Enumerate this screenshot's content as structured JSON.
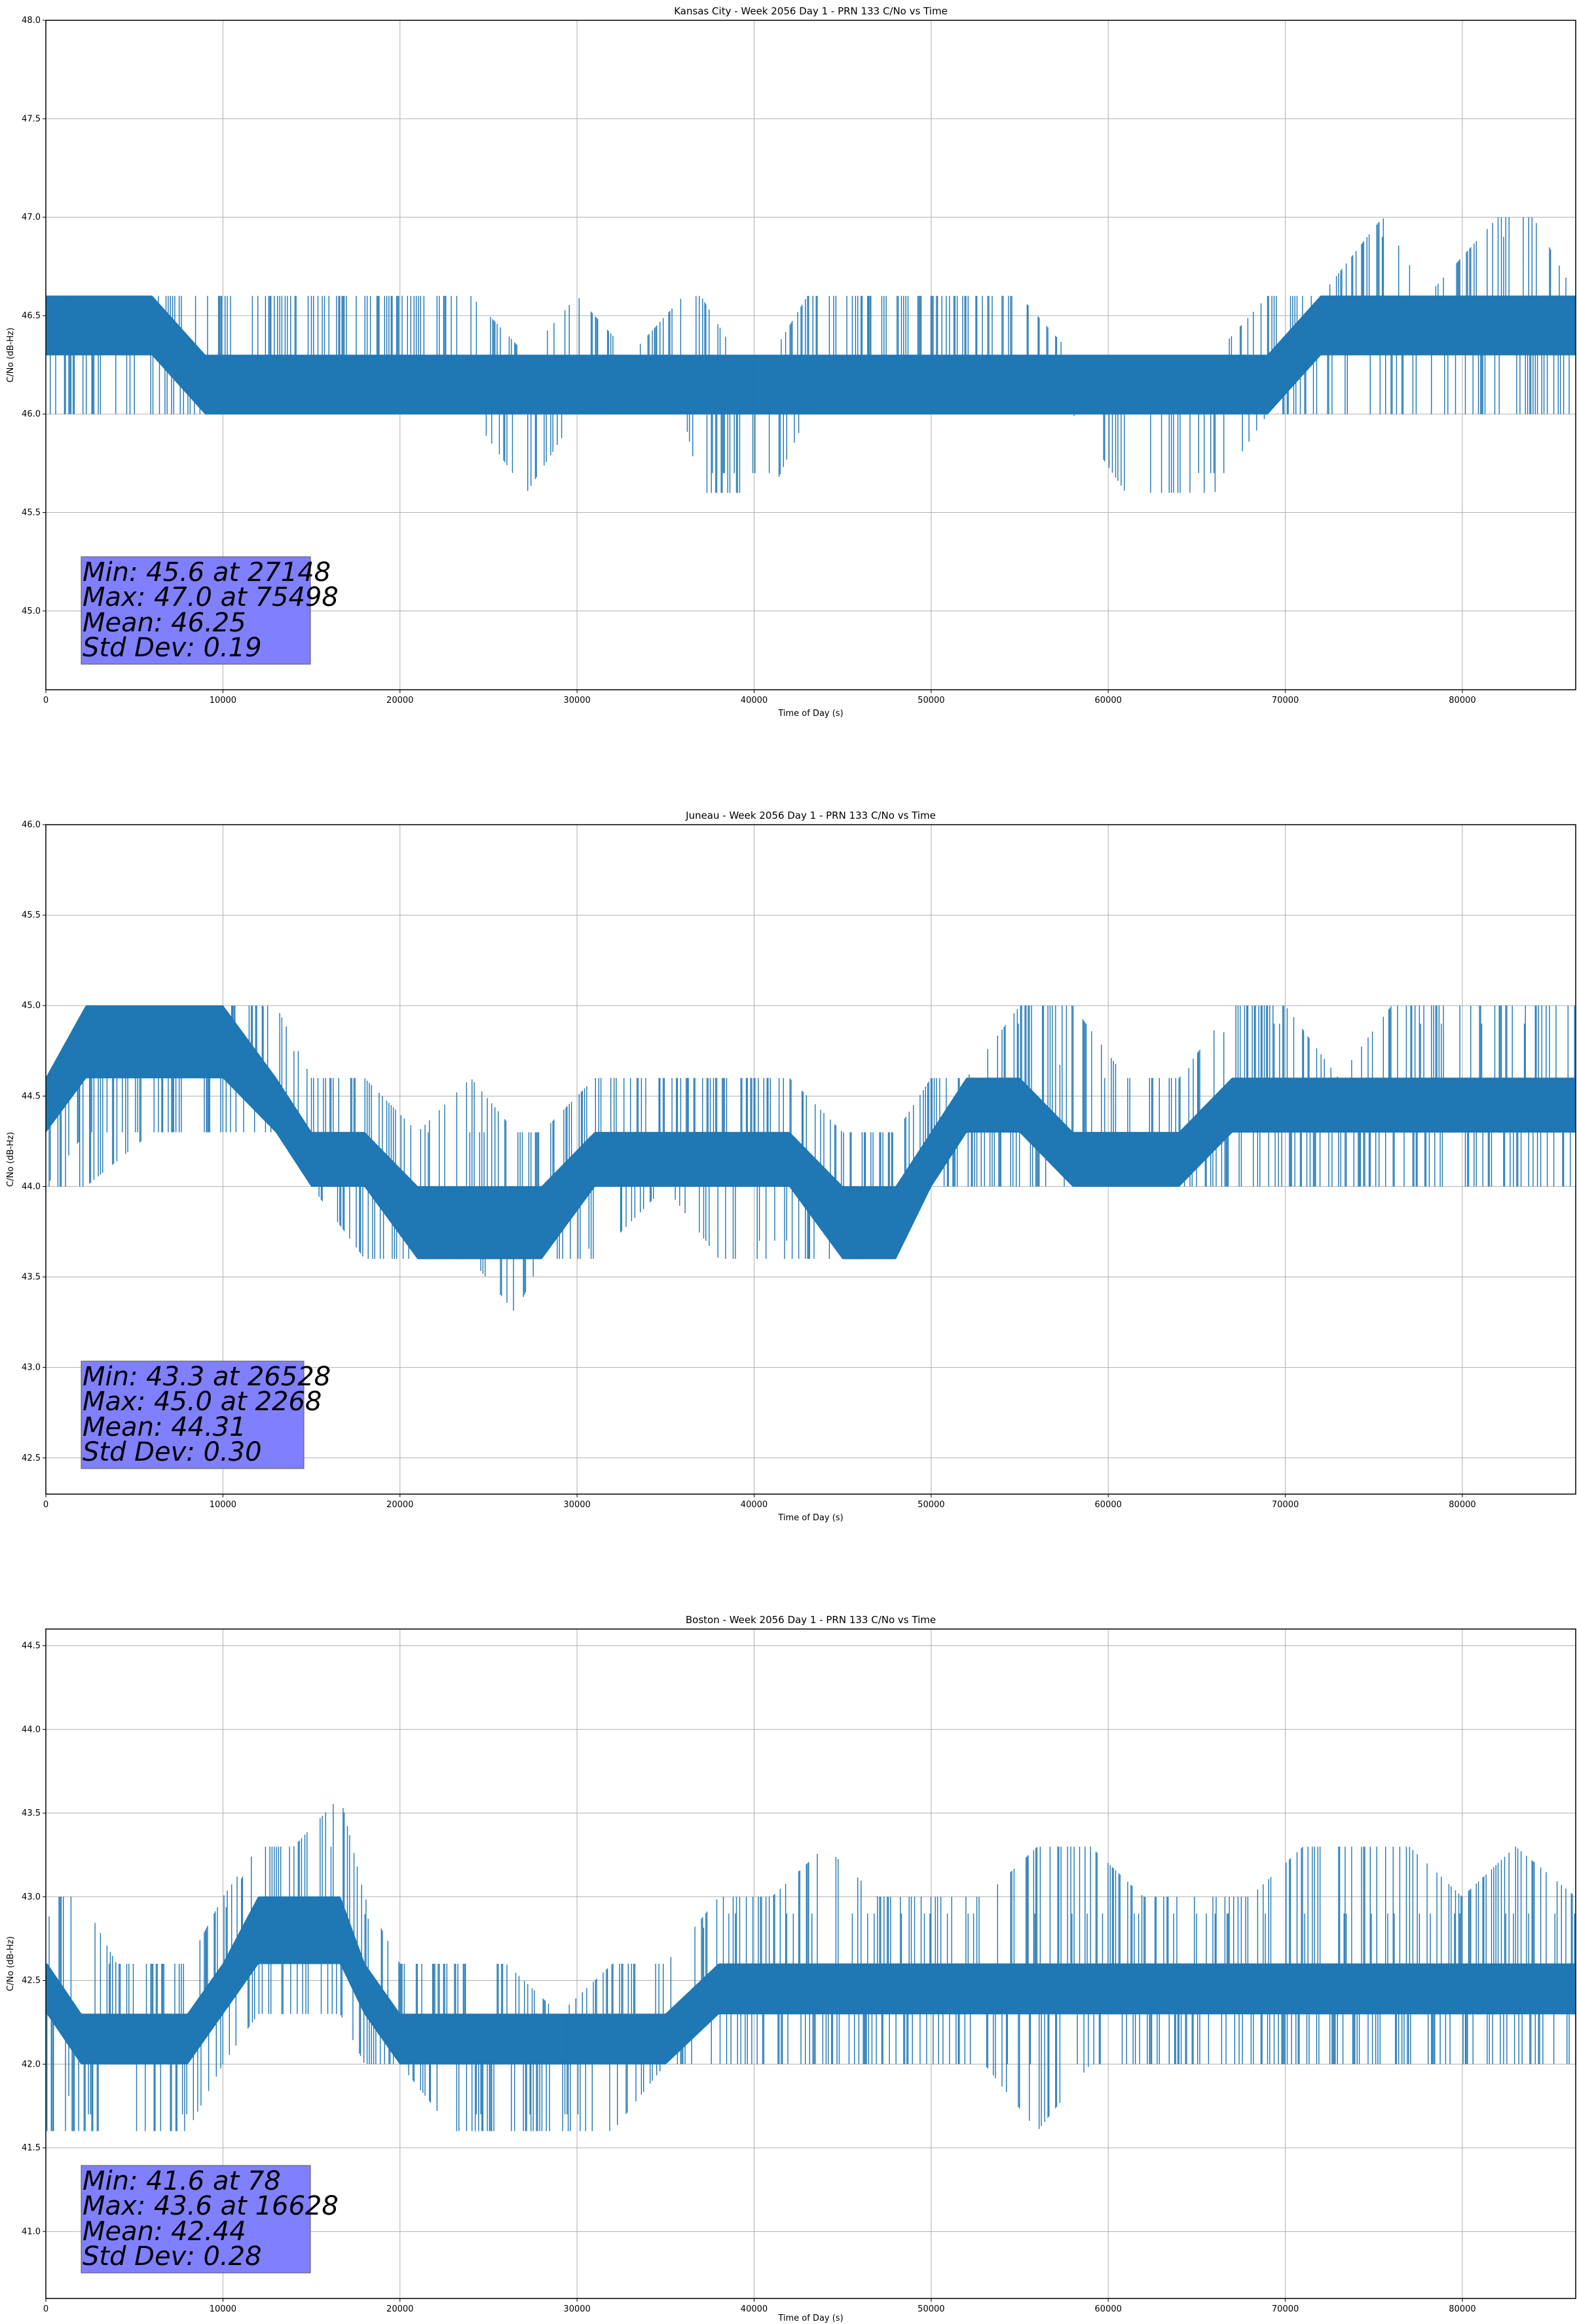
{
  "chart_data": [
    {
      "type": "line",
      "title": "Kansas City - Week 2056 Day 1 - PRN 133 C/No vs Time",
      "xlabel": "Time of Day (s)",
      "ylabel": "C/No (dB-Hz)",
      "xlim": [
        0,
        86400
      ],
      "ylim": [
        44.6,
        48.0
      ],
      "xticks": [
        0,
        10000,
        20000,
        30000,
        40000,
        50000,
        60000,
        70000,
        80000
      ],
      "yticks": [
        45.0,
        45.5,
        46.0,
        46.5,
        47.0,
        47.5,
        48.0
      ],
      "grid": true,
      "series": [
        {
          "color": "#1f77b4",
          "x": [
            0,
            2000,
            6000,
            9000,
            10000,
            13000,
            16000,
            20000,
            24000,
            27148,
            30000,
            33000,
            36000,
            37000,
            39000,
            41000,
            43000,
            46000,
            49000,
            52000,
            55000,
            58000,
            61000,
            63000,
            66000,
            69000,
            72000,
            75498,
            78000,
            82000,
            84000,
            86400
          ],
          "low": [
            46.0,
            46.0,
            46.0,
            46.0,
            46.0,
            46.0,
            46.0,
            46.0,
            46.0,
            45.6,
            46.0,
            46.0,
            46.0,
            45.6,
            45.6,
            45.6,
            46.0,
            46.0,
            46.0,
            46.0,
            46.0,
            46.0,
            45.6,
            45.6,
            45.6,
            46.0,
            46.0,
            46.0,
            46.0,
            46.0,
            46.0,
            46.0
          ],
          "band_low": [
            46.3,
            46.3,
            46.3,
            46.0,
            46.0,
            46.0,
            46.0,
            46.0,
            46.0,
            46.0,
            46.0,
            46.0,
            46.0,
            46.0,
            46.0,
            46.0,
            46.0,
            46.0,
            46.0,
            46.0,
            46.0,
            46.0,
            46.0,
            46.0,
            46.0,
            46.0,
            46.3,
            46.3,
            46.3,
            46.3,
            46.3,
            46.3
          ],
          "band_high": [
            46.6,
            46.6,
            46.6,
            46.3,
            46.3,
            46.3,
            46.3,
            46.3,
            46.3,
            46.3,
            46.3,
            46.3,
            46.3,
            46.3,
            46.3,
            46.3,
            46.3,
            46.3,
            46.3,
            46.3,
            46.3,
            46.3,
            46.3,
            46.3,
            46.3,
            46.3,
            46.6,
            46.6,
            46.6,
            46.6,
            46.6,
            46.6
          ],
          "high": [
            46.6,
            46.6,
            46.6,
            46.6,
            46.6,
            46.6,
            46.6,
            46.6,
            46.6,
            46.3,
            46.6,
            46.3,
            46.6,
            46.6,
            46.3,
            46.3,
            46.6,
            46.6,
            46.6,
            46.6,
            46.6,
            46.3,
            46.3,
            46.3,
            46.3,
            46.6,
            46.6,
            47.0,
            46.6,
            47.0,
            47.0,
            46.6
          ]
        }
      ],
      "annotation": {
        "min": "Min: 45.6 at 27148",
        "max": "Max: 47.0 at 75498",
        "mean": "Mean: 46.25",
        "std": "Std Dev: 0.19",
        "color": "#8080ff"
      }
    },
    {
      "type": "line",
      "title": "Juneau - Week 2056 Day 1 - PRN 133 C/No vs Time",
      "xlabel": "Time of Day (s)",
      "ylabel": "C/No (dB-Hz)",
      "xlim": [
        0,
        86400
      ],
      "ylim": [
        42.3,
        46.0
      ],
      "xticks": [
        0,
        10000,
        20000,
        30000,
        40000,
        50000,
        60000,
        70000,
        80000
      ],
      "yticks": [
        42.5,
        43.0,
        43.5,
        44.0,
        44.5,
        45.0,
        45.5,
        46.0
      ],
      "grid": true,
      "series": [
        {
          "color": "#1f77b4",
          "x": [
            0,
            2268,
            6000,
            10000,
            13000,
            15000,
            18000,
            21000,
            24000,
            26528,
            28000,
            31000,
            35000,
            38000,
            42000,
            45000,
            48000,
            50000,
            52000,
            55000,
            58000,
            61000,
            64000,
            67000,
            70000,
            73000,
            76000,
            79000,
            82000,
            84000,
            86400
          ],
          "low": [
            44.0,
            44.0,
            44.3,
            44.3,
            44.3,
            44.0,
            43.6,
            43.6,
            43.6,
            43.3,
            43.6,
            43.6,
            44.0,
            43.6,
            43.6,
            43.6,
            43.6,
            44.0,
            44.0,
            44.0,
            44.0,
            44.0,
            44.0,
            44.0,
            44.0,
            44.0,
            44.0,
            44.0,
            44.0,
            44.0,
            44.0
          ],
          "band_low": [
            44.3,
            44.6,
            44.6,
            44.6,
            44.3,
            44.0,
            44.0,
            43.6,
            43.6,
            43.6,
            43.6,
            44.0,
            44.0,
            44.0,
            44.0,
            43.6,
            43.6,
            44.0,
            44.3,
            44.3,
            44.0,
            44.0,
            44.0,
            44.3,
            44.3,
            44.3,
            44.3,
            44.3,
            44.3,
            44.3,
            44.3
          ],
          "band_high": [
            44.6,
            45.0,
            45.0,
            45.0,
            44.6,
            44.3,
            44.3,
            44.0,
            44.0,
            44.0,
            44.0,
            44.3,
            44.3,
            44.3,
            44.3,
            44.0,
            44.0,
            44.3,
            44.6,
            44.6,
            44.3,
            44.3,
            44.3,
            44.6,
            44.6,
            44.6,
            44.6,
            44.6,
            44.6,
            44.6,
            44.6
          ],
          "high": [
            44.6,
            45.0,
            45.0,
            45.0,
            45.0,
            44.6,
            44.6,
            44.3,
            44.6,
            44.3,
            44.3,
            44.6,
            44.6,
            44.6,
            44.6,
            44.3,
            44.3,
            44.6,
            44.6,
            45.0,
            45.0,
            44.6,
            44.6,
            45.0,
            45.0,
            44.6,
            45.0,
            45.0,
            45.0,
            45.0,
            45.0
          ]
        }
      ],
      "annotation": {
        "min": "Min: 43.3 at 26528",
        "max": "Max: 45.0 at 2268",
        "mean": "Mean: 44.31",
        "std": "Std Dev: 0.30",
        "color": "#8080ff"
      }
    },
    {
      "type": "line",
      "title": "Boston - Week 2056 Day 1 - PRN 133 C/No vs Time",
      "xlabel": "Time of Day (s)",
      "ylabel": "C/No (dB-Hz)",
      "xlim": [
        0,
        86400
      ],
      "ylim": [
        40.6,
        44.6
      ],
      "xticks": [
        0,
        10000,
        20000,
        30000,
        40000,
        50000,
        60000,
        70000,
        80000
      ],
      "yticks": [
        41.0,
        41.5,
        42.0,
        42.5,
        43.0,
        43.5,
        44.0,
        44.5
      ],
      "grid": true,
      "series": [
        {
          "color": "#1f77b4",
          "x": [
            78,
            2000,
            4000,
            6000,
            8000,
            10000,
            12000,
            14000,
            16628,
            18000,
            20000,
            23000,
            26000,
            29000,
            32000,
            35000,
            38000,
            41000,
            44000,
            47000,
            50000,
            53000,
            56000,
            59000,
            62000,
            65000,
            68000,
            71000,
            74000,
            77000,
            80000,
            83000,
            86400
          ],
          "low": [
            41.6,
            41.6,
            41.6,
            41.6,
            41.6,
            42.0,
            42.3,
            42.3,
            42.3,
            42.0,
            42.0,
            41.6,
            41.6,
            41.6,
            41.6,
            42.0,
            42.0,
            42.0,
            42.0,
            42.0,
            42.0,
            42.0,
            41.6,
            42.0,
            42.0,
            42.0,
            42.0,
            42.0,
            42.0,
            42.0,
            42.0,
            42.0,
            42.0
          ],
          "band_low": [
            42.3,
            42.0,
            42.0,
            42.0,
            42.0,
            42.3,
            42.6,
            42.6,
            42.6,
            42.3,
            42.0,
            42.0,
            42.0,
            42.0,
            42.0,
            42.0,
            42.3,
            42.3,
            42.3,
            42.3,
            42.3,
            42.3,
            42.3,
            42.3,
            42.3,
            42.3,
            42.3,
            42.3,
            42.3,
            42.3,
            42.3,
            42.3,
            42.3
          ],
          "band_high": [
            42.6,
            42.3,
            42.3,
            42.3,
            42.3,
            42.6,
            43.0,
            43.0,
            43.0,
            42.6,
            42.3,
            42.3,
            42.3,
            42.3,
            42.3,
            42.3,
            42.6,
            42.6,
            42.6,
            42.6,
            42.6,
            42.6,
            42.6,
            42.6,
            42.6,
            42.6,
            42.6,
            42.6,
            42.6,
            42.6,
            42.6,
            42.6,
            42.6
          ],
          "high": [
            43.0,
            43.0,
            42.6,
            42.6,
            42.6,
            43.0,
            43.3,
            43.3,
            43.6,
            43.0,
            42.6,
            42.6,
            42.6,
            42.3,
            42.6,
            42.6,
            43.0,
            43.0,
            43.3,
            43.0,
            43.0,
            43.0,
            43.3,
            43.3,
            43.0,
            43.0,
            43.0,
            43.3,
            43.3,
            43.3,
            43.0,
            43.3,
            43.0
          ]
        }
      ],
      "annotation": {
        "min": "Min: 41.6 at 78",
        "max": "Max: 43.6 at 16628",
        "mean": "Mean: 42.44",
        "std": "Std Dev: 0.28",
        "color": "#8080ff"
      }
    }
  ]
}
